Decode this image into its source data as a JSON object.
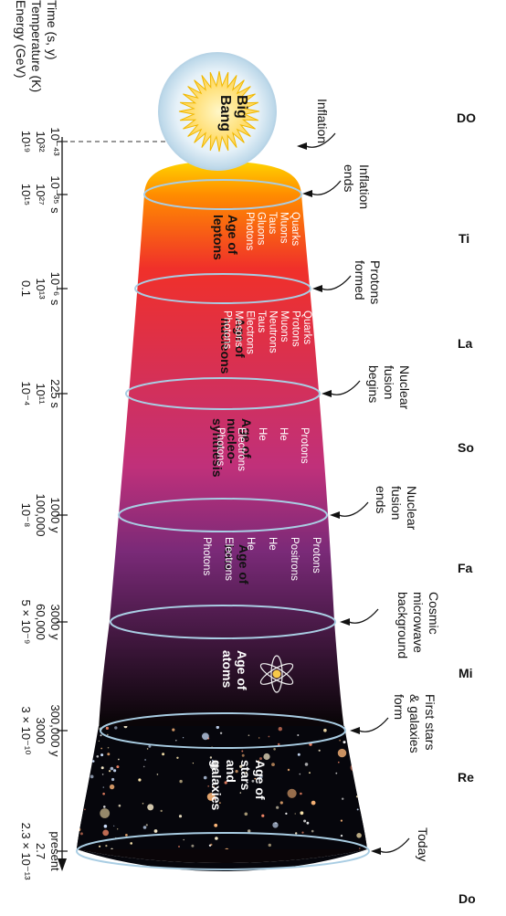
{
  "axis_labels": [
    "Time (s, y)",
    "Temperature (K)",
    "Energy (GeV)"
  ],
  "big_bang_label": [
    "Big",
    "Bang"
  ],
  "time_markers": [
    {
      "time": "10⁻⁴³",
      "temperature": "10³²",
      "energy": "10¹⁹"
    },
    {
      "time": "10⁻³⁵ s",
      "temperature": "10²⁷",
      "energy": "10¹⁵"
    },
    {
      "time": "10⁻⁶ s",
      "temperature": "10¹³",
      "energy": "0.1"
    },
    {
      "time": "225 s",
      "temperature": "10¹¹",
      "energy": "10⁻⁴"
    },
    {
      "time": "1000 y",
      "temperature": "100,000",
      "energy": "10⁻⁸"
    },
    {
      "time": "3000 y",
      "temperature": "60,000",
      "energy": "5 × 10⁻⁹"
    },
    {
      "time": "300,000 y",
      "temperature": "3000",
      "energy": "3 × 10⁻¹⁰"
    },
    {
      "time": "present",
      "temperature": "2.7",
      "energy": "2.3 × 10⁻¹³"
    }
  ],
  "events": [
    [
      "Inflation"
    ],
    [
      "Inflation",
      "ends"
    ],
    [
      "Protons",
      "formed"
    ],
    [
      "Nuclear",
      "fusion",
      "begins"
    ],
    [
      "Nuclear",
      "fusion",
      "ends"
    ],
    [
      "Cosmic",
      "microwave",
      "background"
    ],
    [
      "First stars",
      "& galaxies",
      "form"
    ],
    [
      "Today"
    ]
  ],
  "eras": [
    {
      "title": [
        "Age of",
        "leptons"
      ],
      "particles": [
        "Quarks",
        "Muons",
        "Taus",
        "Gluons",
        "Photons"
      ]
    },
    {
      "title": [
        "Age of",
        "nucleons"
      ],
      "particles": [
        "Quarks",
        "Protons",
        "Muons",
        "Neutrons",
        "Taus",
        "Electrons",
        "Mesons",
        "Photons"
      ]
    },
    {
      "title": [
        "Age of",
        "nucleo-",
        "synthesis"
      ],
      "particles": [
        "Protons",
        "He",
        "He",
        "Electrons",
        "Photons"
      ]
    },
    {
      "title": [
        "Age of",
        "ions"
      ],
      "particles": [
        "Protons",
        "Positrons",
        "He",
        "He",
        "Electrons",
        "Photons"
      ]
    },
    {
      "title": [
        "Age of",
        "atoms"
      ],
      "particles": []
    },
    {
      "title": [
        "Age of",
        "stars",
        "and",
        "galaxies"
      ],
      "particles": []
    }
  ],
  "solfege_notes": [
    "DO",
    "Ti",
    "La",
    "So",
    "Fa",
    "Mi",
    "Re",
    "Do"
  ],
  "colors": {
    "hot": "#ffe000",
    "orange": "#ff8c00",
    "red": "#f0302a",
    "magenta": "#c0307a",
    "purple": "#7a2a78",
    "dark": "#0a0508",
    "ring": "#9fc3dc"
  }
}
